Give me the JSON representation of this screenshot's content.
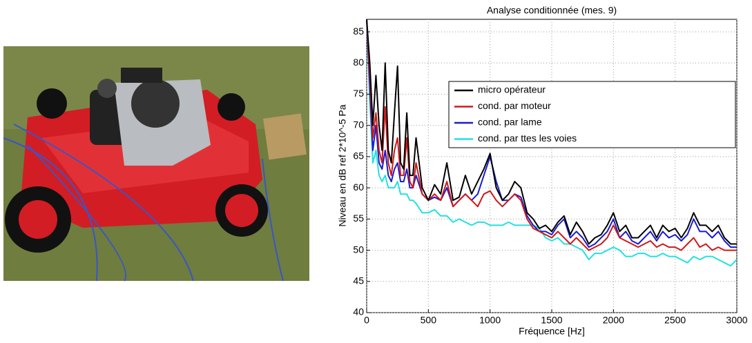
{
  "chart_data": {
    "type": "line",
    "title": "Analyse conditionnée (mes. 9)",
    "x_label": "Fréquence [Hz]",
    "y_label": "Niveau en dB ref 2*10^-5 Pa",
    "x": [
      0,
      25,
      50,
      75,
      100,
      125,
      150,
      175,
      200,
      225,
      250,
      275,
      300,
      325,
      350,
      375,
      400,
      450,
      500,
      550,
      600,
      650,
      700,
      750,
      800,
      850,
      900,
      950,
      1000,
      1050,
      1100,
      1150,
      1200,
      1250,
      1300,
      1350,
      1400,
      1450,
      1500,
      1550,
      1600,
      1650,
      1700,
      1750,
      1800,
      1850,
      1900,
      1950,
      2000,
      2050,
      2100,
      2150,
      2200,
      2250,
      2300,
      2350,
      2400,
      2450,
      2500,
      2550,
      2600,
      2650,
      2700,
      2750,
      2800,
      2850,
      2900,
      2950,
      3000
    ],
    "series": [
      {
        "name": "micro opérateur",
        "color": "#000000",
        "values": [
          87,
          80,
          70,
          78,
          70,
          66,
          80,
          66,
          64,
          72,
          79.5,
          64,
          63,
          72,
          62,
          62,
          68,
          60,
          58,
          60.5,
          59,
          64,
          58,
          58.5,
          62,
          59,
          61,
          63,
          65.5,
          60,
          58,
          59,
          61,
          60,
          56,
          55,
          53.5,
          54,
          53,
          54.5,
          55.5,
          52.5,
          54.5,
          53,
          51,
          52,
          52.5,
          54,
          56,
          53,
          54,
          52,
          52,
          53,
          54,
          52,
          54,
          53,
          53.5,
          52,
          53.5,
          56,
          54,
          54,
          53,
          54,
          52,
          51,
          51
        ]
      },
      {
        "name": "cond. par moteur",
        "color": "#d01818",
        "values": [
          87,
          78,
          68,
          72,
          66,
          64,
          73,
          64,
          62,
          66,
          68,
          62,
          62,
          68,
          61,
          60,
          64,
          59,
          58,
          59,
          58,
          61,
          57,
          58,
          59,
          58,
          57,
          59,
          59.5,
          58,
          57,
          58,
          59,
          58,
          55,
          53.5,
          53,
          52.5,
          52,
          53,
          52,
          51,
          52,
          51,
          50,
          50.5,
          51,
          52,
          54,
          52,
          51.5,
          51,
          50.5,
          51,
          51.5,
          50.5,
          51,
          50.5,
          50.5,
          50,
          51,
          52,
          50.5,
          51,
          50,
          50.5,
          50,
          50,
          50
        ]
      },
      {
        "name": "cond. par lame",
        "color": "#1a1acc",
        "values": [
          87,
          76,
          66,
          70,
          64,
          63,
          66,
          62,
          61,
          63,
          64,
          61,
          61,
          63,
          60,
          60,
          62,
          59,
          58,
          58.5,
          58,
          60,
          57,
          58,
          59,
          58,
          59,
          62,
          65,
          61,
          58,
          58,
          59,
          58.5,
          55.5,
          54,
          53,
          53,
          52.5,
          54,
          55,
          52,
          53,
          52,
          50.5,
          51,
          52,
          53,
          55,
          52,
          53,
          51.5,
          51,
          52,
          53,
          51.5,
          53,
          52,
          52.5,
          51.5,
          52.5,
          55,
          53,
          53,
          52,
          53,
          51.5,
          50.5,
          50.5
        ]
      },
      {
        "name": "cond. par ttes les voies",
        "color": "#22e0e0",
        "values": [
          87,
          74,
          64,
          66,
          62,
          61,
          62,
          60,
          60,
          60,
          61,
          59,
          59,
          59,
          58,
          58,
          57.5,
          56,
          56,
          56.5,
          55.5,
          55.5,
          54.5,
          55,
          54.5,
          54,
          54.5,
          54.5,
          54,
          54,
          54,
          54.5,
          54,
          54,
          54,
          54,
          53.5,
          52,
          51.5,
          52,
          51,
          51,
          50.5,
          50,
          48.5,
          49.5,
          49.5,
          50,
          50.5,
          50,
          49,
          49,
          49.5,
          49.5,
          49,
          49,
          49.5,
          49,
          49,
          48.5,
          48,
          49,
          48.5,
          49,
          49,
          48.5,
          48,
          47.5,
          48.5
        ]
      }
    ],
    "xlim": [
      0,
      3000
    ],
    "xticks": [
      0,
      500,
      1000,
      1500,
      2000,
      2500,
      3000
    ],
    "ylim": [
      40,
      87
    ],
    "yticks": [
      40,
      45,
      50,
      55,
      60,
      65,
      70,
      75,
      80,
      85
    ],
    "grid": true,
    "legend": "upper right"
  }
}
